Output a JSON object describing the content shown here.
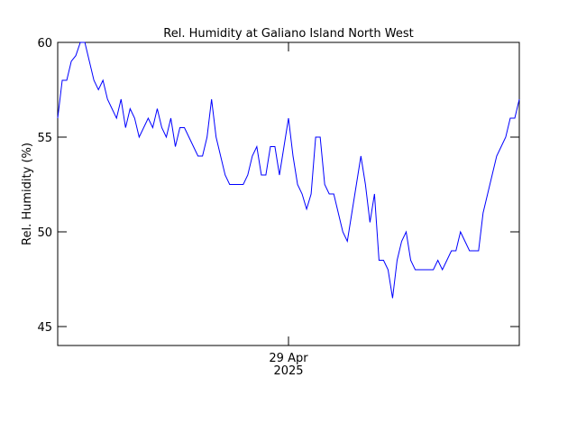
{
  "chart_data": {
    "type": "line",
    "title": "Rel. Humidity at Galiano Island North West",
    "y_label": "Rel. Humidity (%)",
    "categories": [
      null,
      null,
      null,
      null,
      null,
      null,
      null,
      null,
      null,
      null,
      null,
      null,
      null,
      null,
      null,
      null,
      null,
      null,
      null,
      null,
      null,
      null,
      null,
      null,
      null,
      null,
      null,
      null,
      null,
      null,
      null,
      null,
      null,
      null,
      null,
      null,
      null,
      null,
      null,
      null,
      null,
      null,
      null,
      null,
      null,
      null,
      null,
      null,
      null,
      null,
      null,
      "29 Apr 2025",
      null,
      null,
      null,
      null,
      null,
      null,
      null,
      null,
      null,
      null,
      null,
      null,
      null,
      null,
      null,
      null,
      null,
      null,
      null,
      null,
      null,
      null,
      null,
      null,
      null,
      null,
      null,
      null,
      null,
      null,
      null,
      null,
      null,
      null,
      null,
      null,
      null,
      null,
      null,
      null,
      null,
      null,
      null,
      null,
      null,
      null,
      null,
      null,
      null,
      null,
      null
    ],
    "series": [
      {
        "name": "Rel. Humidity",
        "color": "#0000ff",
        "values": [
          56,
          58,
          58,
          59,
          59.3,
          60,
          60,
          59,
          58,
          57.5,
          58,
          57,
          56.5,
          56,
          57,
          55.5,
          56.5,
          56,
          55,
          55.5,
          56,
          55.5,
          56.5,
          55.5,
          55,
          56,
          54.5,
          55.5,
          55.5,
          55,
          54.5,
          54,
          54,
          55,
          57,
          55,
          54,
          53,
          52.5,
          52.5,
          52.5,
          52.5,
          53,
          54,
          54.5,
          53,
          53,
          54.5,
          54.5,
          53,
          54.5,
          56,
          54,
          52.5,
          52,
          51.2,
          52,
          55,
          55,
          52.5,
          52,
          52,
          51,
          50,
          49.5,
          51,
          52.5,
          54,
          52.5,
          50.5,
          52,
          48.5,
          48.5,
          48,
          46.5,
          48.5,
          49.5,
          50,
          48.5,
          48,
          48,
          48,
          48,
          48,
          48.5,
          48,
          48.5,
          49,
          49,
          50,
          49.5,
          49,
          49,
          49,
          51,
          52,
          53,
          54,
          54.5,
          55,
          56,
          56,
          57
        ]
      }
    ],
    "ylim": [
      44,
      60
    ],
    "yticks": [
      45,
      50,
      55,
      60
    ]
  }
}
